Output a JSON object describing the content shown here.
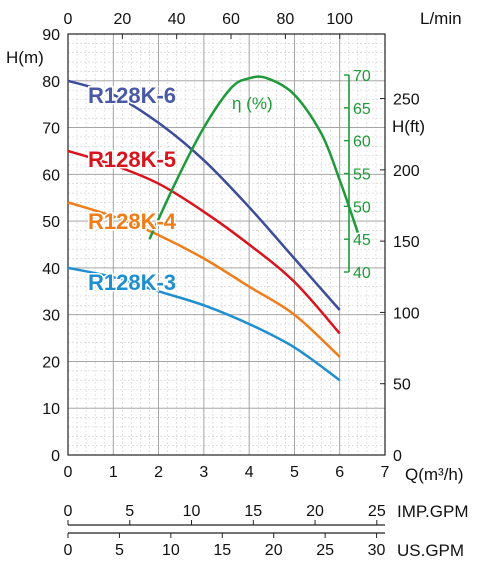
{
  "chart_data": {
    "type": "line",
    "x_label": "Q(m³/h)",
    "y_label": "H(m)",
    "right_axis_label": "H(ft)",
    "top_axis_label": "L/min",
    "imp_gpm_label": "IMP.GPM",
    "us_gpm_label": "US.GPM",
    "eff_label": "η (%)",
    "xlim": [
      0,
      7
    ],
    "ylim": [
      0,
      90
    ],
    "x_ticks": [
      "0",
      "1",
      "2",
      "3",
      "4",
      "5",
      "6",
      "7"
    ],
    "y_ticks": [
      "0",
      "10",
      "20",
      "30",
      "40",
      "50",
      "60",
      "70",
      "80",
      "90"
    ],
    "top_ticks": [
      "0",
      "20",
      "40",
      "60",
      "80",
      "100"
    ],
    "ft_ticks": [
      "0",
      "50",
      "100",
      "150",
      "200",
      "250"
    ],
    "imp_ticks": [
      "0",
      "5",
      "10",
      "15",
      "20",
      "25"
    ],
    "us_ticks": [
      "0",
      "5",
      "10",
      "15",
      "20",
      "25",
      "30"
    ],
    "eff_ticks": [
      "40",
      "45",
      "50",
      "55",
      "60",
      "65",
      "70"
    ],
    "eff_range": [
      40,
      70
    ],
    "grid": true,
    "series": [
      {
        "name": "R128K-6",
        "color": "#3d4d9a",
        "label_color": "#4a58a8",
        "x": [
          0,
          1,
          2,
          3,
          4,
          5,
          6
        ],
        "y": [
          80,
          77,
          71,
          63,
          53,
          42,
          31
        ]
      },
      {
        "name": "R128K-5",
        "color": "#d9141c",
        "label_color": "#d9141c",
        "x": [
          0,
          1,
          2,
          3,
          4,
          5,
          6
        ],
        "y": [
          65,
          62,
          58,
          52,
          45,
          37,
          26
        ]
      },
      {
        "name": "R128K-4",
        "color": "#ef7d1a",
        "label_color": "#ef7d1a",
        "x": [
          0,
          1,
          2,
          3,
          4,
          5,
          6
        ],
        "y": [
          54,
          51,
          47,
          42,
          36,
          30,
          21
        ]
      },
      {
        "name": "R128K-3",
        "color": "#1f8fd0",
        "label_color": "#1f8fd0",
        "x": [
          0,
          1,
          2,
          3,
          4,
          5,
          6
        ],
        "y": [
          40,
          38,
          35,
          32,
          28,
          23,
          16
        ]
      }
    ],
    "efficiency": {
      "name": "η (%)",
      "color": "#1e9a3a",
      "x": [
        1.8,
        2.4,
        3.0,
        3.6,
        4.0,
        4.4,
        5.0,
        5.6,
        6.0,
        6.4
      ],
      "y": [
        45,
        54,
        62,
        68,
        69.5,
        69.5,
        67,
        61,
        54,
        46
      ]
    }
  }
}
